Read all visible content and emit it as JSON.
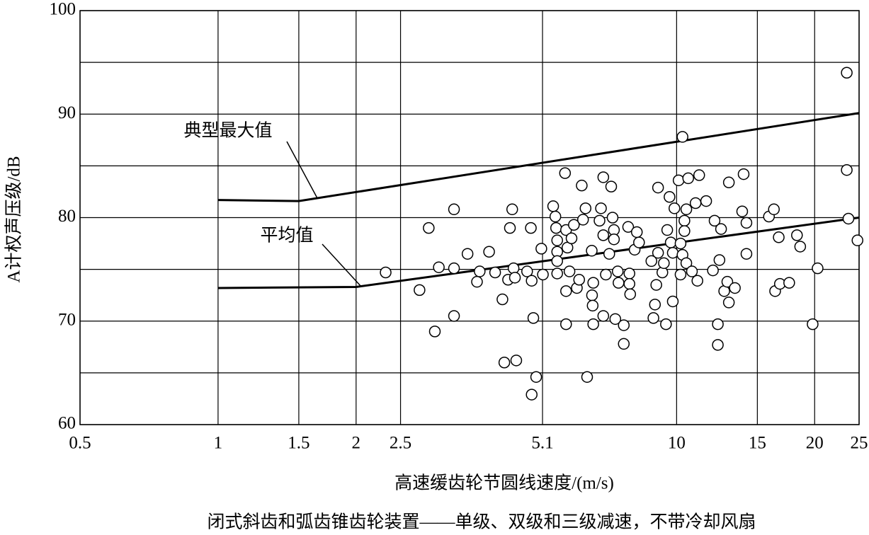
{
  "chart_data": {
    "type": "scatter",
    "x_label": "高速缓齿轮节圆线速度/(m/s)",
    "y_label": "A计权声压级/dB",
    "caption": "闭式斜齿和弧齿锥齿轮装置——单级、双级和三级减速，不带冷却风扇",
    "xlim": [
      0.5,
      25
    ],
    "ylim": [
      60,
      100
    ],
    "log_x": true,
    "grid": true,
    "xticks": [
      0.5,
      1,
      1.5,
      2,
      2.5,
      5.1,
      10,
      15,
      20,
      25
    ],
    "yticks": [
      60,
      70,
      80,
      90,
      100
    ],
    "lines": [
      {
        "label": "典型最大值",
        "x": [
          1,
          1.5,
          25
        ],
        "y": [
          81.7,
          81.6,
          90.1
        ]
      },
      {
        "label": "平均值",
        "x": [
          1,
          2,
          25
        ],
        "y": [
          73.2,
          73.3,
          80
        ]
      }
    ],
    "points": {
      "x": [
        2.32,
        2.75,
        2.88,
        2.97,
        3.03,
        3.27,
        3.27,
        3.27,
        3.5,
        3.67,
        3.72,
        3.9,
        4.02,
        4.17,
        4.21,
        4.29,
        4.33,
        4.38,
        4.41,
        4.44,
        4.47,
        4.72,
        4.81,
        4.83,
        4.83,
        4.87,
        4.94,
        5.07,
        5.11,
        5.38,
        5.44,
        5.46,
        5.49,
        5.49,
        5.49,
        5.49,
        5.71,
        5.74,
        5.78,
        5.74,
        5.74,
        5.84,
        5.9,
        5.97,
        6.06,
        6.13,
        6.21,
        6.25,
        6.33,
        6.38,
        6.53,
        6.54,
        6.56,
        6.58,
        6.58,
        6.79,
        6.84,
        6.92,
        6.92,
        6.92,
        7.01,
        7.13,
        7.2,
        7.25,
        7.3,
        7.3,
        7.35,
        7.44,
        7.47,
        7.67,
        7.67,
        7.84,
        7.89,
        7.89,
        7.92,
        8.1,
        8.19,
        8.28,
        8.81,
        8.9,
        8.97,
        9.03,
        9.11,
        9.11,
        9.31,
        9.38,
        9.48,
        9.54,
        9.65,
        9.71,
        9.81,
        9.81,
        9.89,
        10.1,
        10.2,
        10.2,
        10.3,
        10.3,
        10.4,
        10.4,
        10.5,
        10.5,
        10.6,
        10.8,
        11.0,
        11.1,
        11.2,
        11.6,
        12.0,
        12.1,
        12.3,
        12.3,
        12.4,
        12.5,
        12.7,
        12.9,
        13.0,
        13.0,
        13.4,
        13.9,
        14.0,
        14.2,
        14.2,
        15.9,
        16.3,
        16.4,
        16.7,
        16.8,
        17.6,
        18.3,
        18.6,
        19.8,
        20.3,
        23.5,
        23.5,
        23.7,
        24.8
      ],
      "y": [
        74.7,
        73.0,
        79.0,
        69.0,
        75.2,
        80.8,
        75.1,
        70.5,
        76.5,
        73.8,
        74.8,
        76.7,
        74.7,
        72.1,
        66.0,
        74.0,
        79.0,
        80.8,
        75.1,
        74.2,
        66.2,
        74.8,
        79.0,
        73.9,
        62.9,
        70.3,
        64.6,
        77.0,
        74.5,
        81.1,
        80.1,
        79.0,
        77.8,
        76.7,
        75.8,
        74.6,
        84.3,
        78.8,
        77.1,
        72.9,
        69.7,
        74.8,
        78.0,
        79.3,
        73.2,
        74.0,
        83.1,
        79.8,
        80.9,
        64.6,
        76.8,
        72.5,
        71.5,
        73.7,
        69.7,
        79.7,
        80.9,
        83.9,
        78.3,
        70.5,
        74.5,
        76.5,
        83.0,
        80.0,
        78.8,
        77.9,
        70.2,
        74.8,
        73.7,
        69.6,
        67.8,
        79.1,
        74.6,
        73.6,
        72.6,
        76.9,
        78.6,
        77.6,
        75.8,
        70.3,
        71.6,
        73.5,
        82.9,
        76.6,
        74.7,
        75.6,
        69.7,
        78.8,
        82.0,
        77.6,
        76.6,
        71.9,
        80.9,
        83.6,
        74.5,
        77.5,
        87.8,
        76.4,
        79.7,
        78.7,
        80.8,
        75.6,
        83.8,
        74.8,
        81.4,
        73.9,
        84.1,
        81.6,
        74.9,
        79.7,
        69.7,
        67.7,
        75.9,
        78.9,
        72.9,
        73.8,
        83.4,
        71.8,
        73.2,
        80.6,
        84.2,
        79.5,
        76.5,
        80.1,
        80.8,
        72.9,
        78.1,
        73.6,
        73.7,
        78.3,
        77.2,
        69.7,
        75.1,
        94.0,
        84.6,
        79.9,
        77.8
      ]
    }
  }
}
